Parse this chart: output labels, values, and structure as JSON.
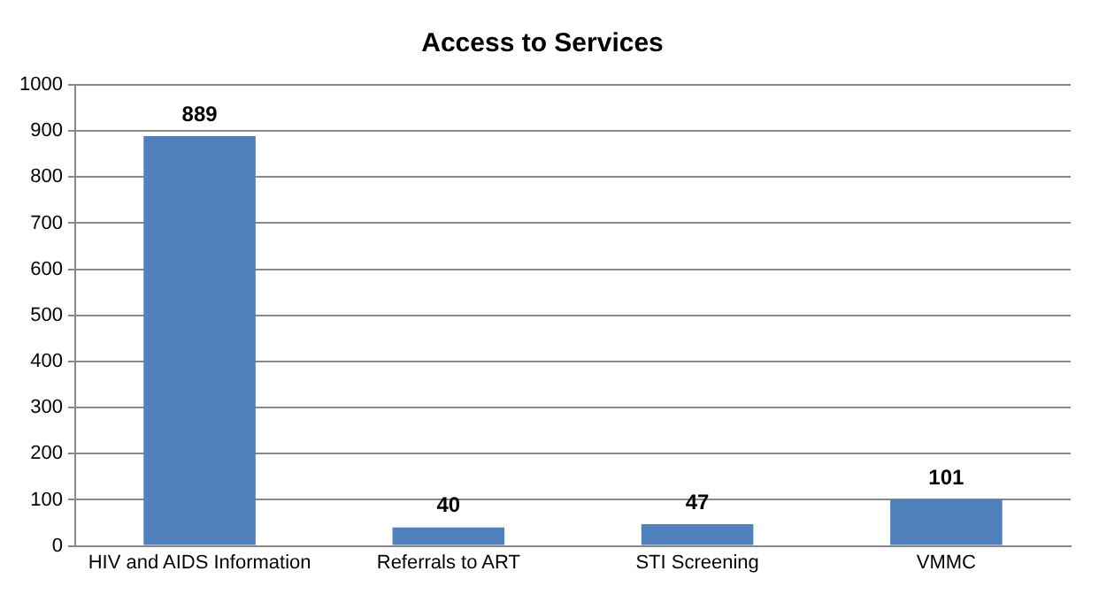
{
  "chart_data": {
    "type": "bar",
    "title": "Access to Services",
    "categories": [
      "HIV and AIDS Information",
      "Referrals to ART",
      "STI Screening",
      "VMMC"
    ],
    "values": [
      889,
      40,
      47,
      101
    ],
    "color": "#4f81bd",
    "ylim": [
      0,
      1000
    ],
    "yticks": [
      0,
      100,
      200,
      300,
      400,
      500,
      600,
      700,
      800,
      900,
      1000
    ],
    "grid": "y",
    "data_labels": true
  }
}
